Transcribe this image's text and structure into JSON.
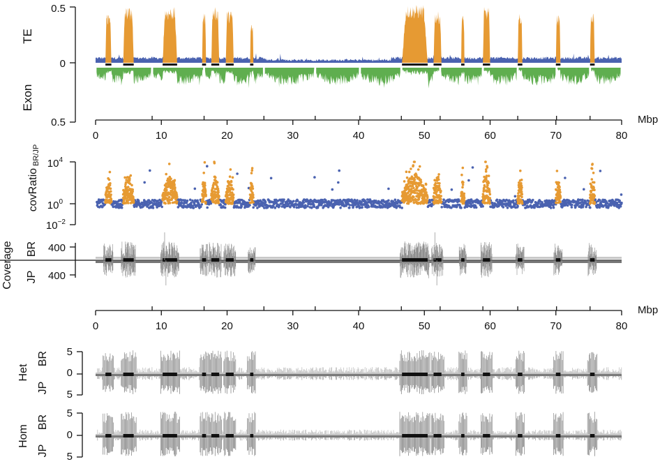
{
  "chart_data": [
    {
      "type": "area",
      "panel": "te-exon",
      "labels": {
        "top": "TE",
        "bottom": "Exon"
      },
      "y_ticks": {
        "top": [
          "0.5",
          "0"
        ],
        "bottom": [
          "0.5"
        ]
      },
      "ylim": [
        0,
        0.5
      ],
      "xlim": [
        0,
        80
      ],
      "colors": {
        "te_background": "#4a62b0",
        "te_peak": "#e69a33",
        "exon": "#5fae4f"
      },
      "te_peaks_mbp": [
        {
          "start": 1.5,
          "end": 2.4,
          "height": 0.45
        },
        {
          "start": 4.2,
          "end": 5.8,
          "height": 0.5
        },
        {
          "start": 10.2,
          "end": 12.4,
          "height": 0.5
        },
        {
          "start": 16.2,
          "end": 16.8,
          "height": 0.45
        },
        {
          "start": 17.6,
          "end": 18.8,
          "height": 0.5
        },
        {
          "start": 19.8,
          "end": 21.0,
          "height": 0.47
        },
        {
          "start": 23.5,
          "end": 24.0,
          "height": 0.35
        },
        {
          "start": 46.6,
          "end": 50.5,
          "height": 0.52
        },
        {
          "start": 51.4,
          "end": 52.6,
          "height": 0.46
        },
        {
          "start": 55.6,
          "end": 56.1,
          "height": 0.43
        },
        {
          "start": 58.9,
          "end": 60.0,
          "height": 0.5
        },
        {
          "start": 64.2,
          "end": 64.9,
          "height": 0.44
        },
        {
          "start": 70.0,
          "end": 70.7,
          "height": 0.43
        },
        {
          "start": 75.2,
          "end": 75.9,
          "height": 0.45
        }
      ]
    },
    {
      "type": "scatter",
      "panel": "cov-ratio",
      "ylabel": "covRatio",
      "ylabel_sub": "BR/JP",
      "y_scale": "log",
      "y_ticks": [
        {
          "base": "10",
          "exp": "4",
          "value": 10000
        },
        {
          "base": "10",
          "exp": "0",
          "value": 1
        },
        {
          "base": "10",
          "exp": "−2",
          "value": 0.01
        }
      ],
      "xlim": [
        0,
        80
      ],
      "series": [
        {
          "color": "#4a62b0"
        },
        {
          "color": "#e69a33"
        }
      ]
    },
    {
      "type": "bar",
      "panel": "coverage",
      "ylabel": "Coverage",
      "labels": {
        "top": "BR",
        "bottom": "JP"
      },
      "y_ticks": {
        "top": "400",
        "bottom": "400"
      },
      "xlim": [
        0,
        80
      ]
    },
    {
      "type": "bar",
      "panel": "het",
      "ylabel": "Het",
      "labels": {
        "top": "BR",
        "bottom": "JP"
      },
      "y_ticks": [
        "5",
        "0",
        "5"
      ],
      "xlim": [
        0,
        80
      ]
    },
    {
      "type": "bar",
      "panel": "hom",
      "ylabel": "Hom",
      "labels": {
        "top": "BR",
        "bottom": "JP"
      },
      "y_ticks": [
        "5",
        "0",
        "5"
      ],
      "xlim": [
        0,
        80
      ]
    }
  ],
  "x_axis": {
    "unit": "Mbp",
    "ticks": [
      "0",
      "10",
      "20",
      "30",
      "40",
      "50",
      "60",
      "70",
      "80"
    ],
    "segment_boundaries_mbp": [
      8.6,
      16.5,
      25.6,
      33.4,
      40.2,
      46.5,
      52.4,
      58.9,
      64.2,
      70.1,
      75.2
    ]
  }
}
